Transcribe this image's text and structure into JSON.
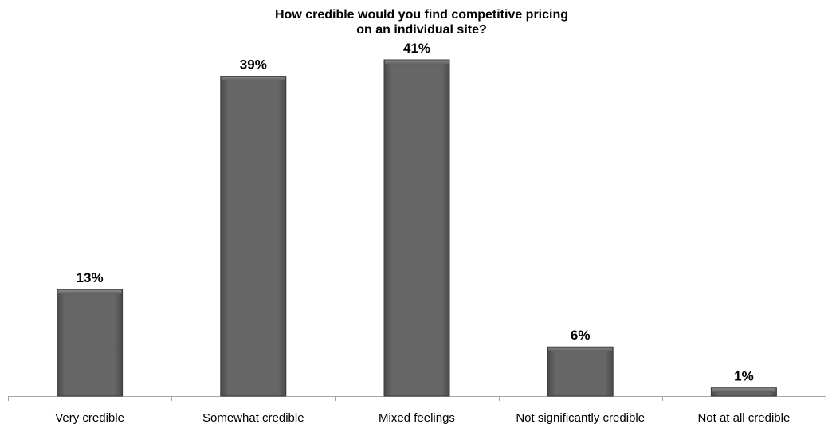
{
  "chart_data": {
    "type": "bar",
    "title": "How credible would you find competitive pricing\non an individual site?",
    "categories": [
      "Very credible",
      "Somewhat credible",
      "Mixed feelings",
      "Not significantly credible",
      "Not at all credible"
    ],
    "values": [
      13,
      39,
      41,
      6,
      1
    ],
    "data_labels": [
      "13%",
      "39%",
      "41%",
      "6%",
      "1%"
    ],
    "value_unit": "%",
    "ylim": [
      0,
      41
    ],
    "grid": false,
    "legend": "none",
    "bar_color": "#666666",
    "bar_border_color": "#3a3a3a",
    "axis_color": "#a6a6a6",
    "label_color": "#000000"
  }
}
